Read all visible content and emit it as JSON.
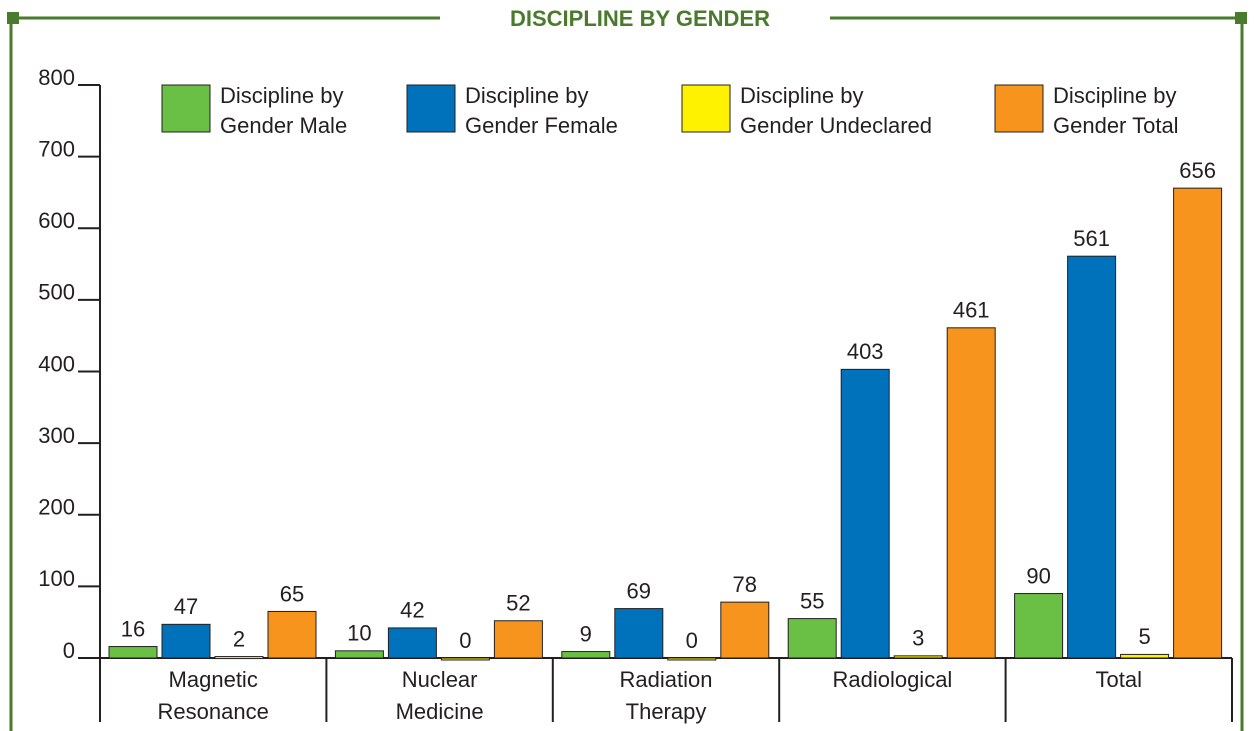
{
  "chart_data": {
    "type": "bar",
    "title": "DISCIPLINE BY GENDER",
    "categories": [
      "Magnetic Resonance",
      "Nuclear Medicine",
      "Radiation Therapy",
      "Radiological",
      "Total"
    ],
    "series": [
      {
        "name": "Discipline by Gender Male",
        "color": "#6abf45",
        "values": [
          16,
          10,
          9,
          55,
          90
        ]
      },
      {
        "name": "Discipline by Gender Female",
        "color": "#0072bc",
        "values": [
          47,
          42,
          69,
          403,
          561
        ]
      },
      {
        "name": "Discipline by Gender Undeclared",
        "color": "#fff200",
        "values": [
          2,
          0,
          0,
          3,
          5
        ]
      },
      {
        "name": "Discipline by Gender Total",
        "color": "#f7941d",
        "values": [
          65,
          52,
          78,
          461,
          656
        ]
      }
    ],
    "ylim": [
      0,
      800
    ],
    "yticks": [
      0,
      100,
      200,
      300,
      400,
      500,
      600,
      700,
      800
    ],
    "legend": "top"
  }
}
